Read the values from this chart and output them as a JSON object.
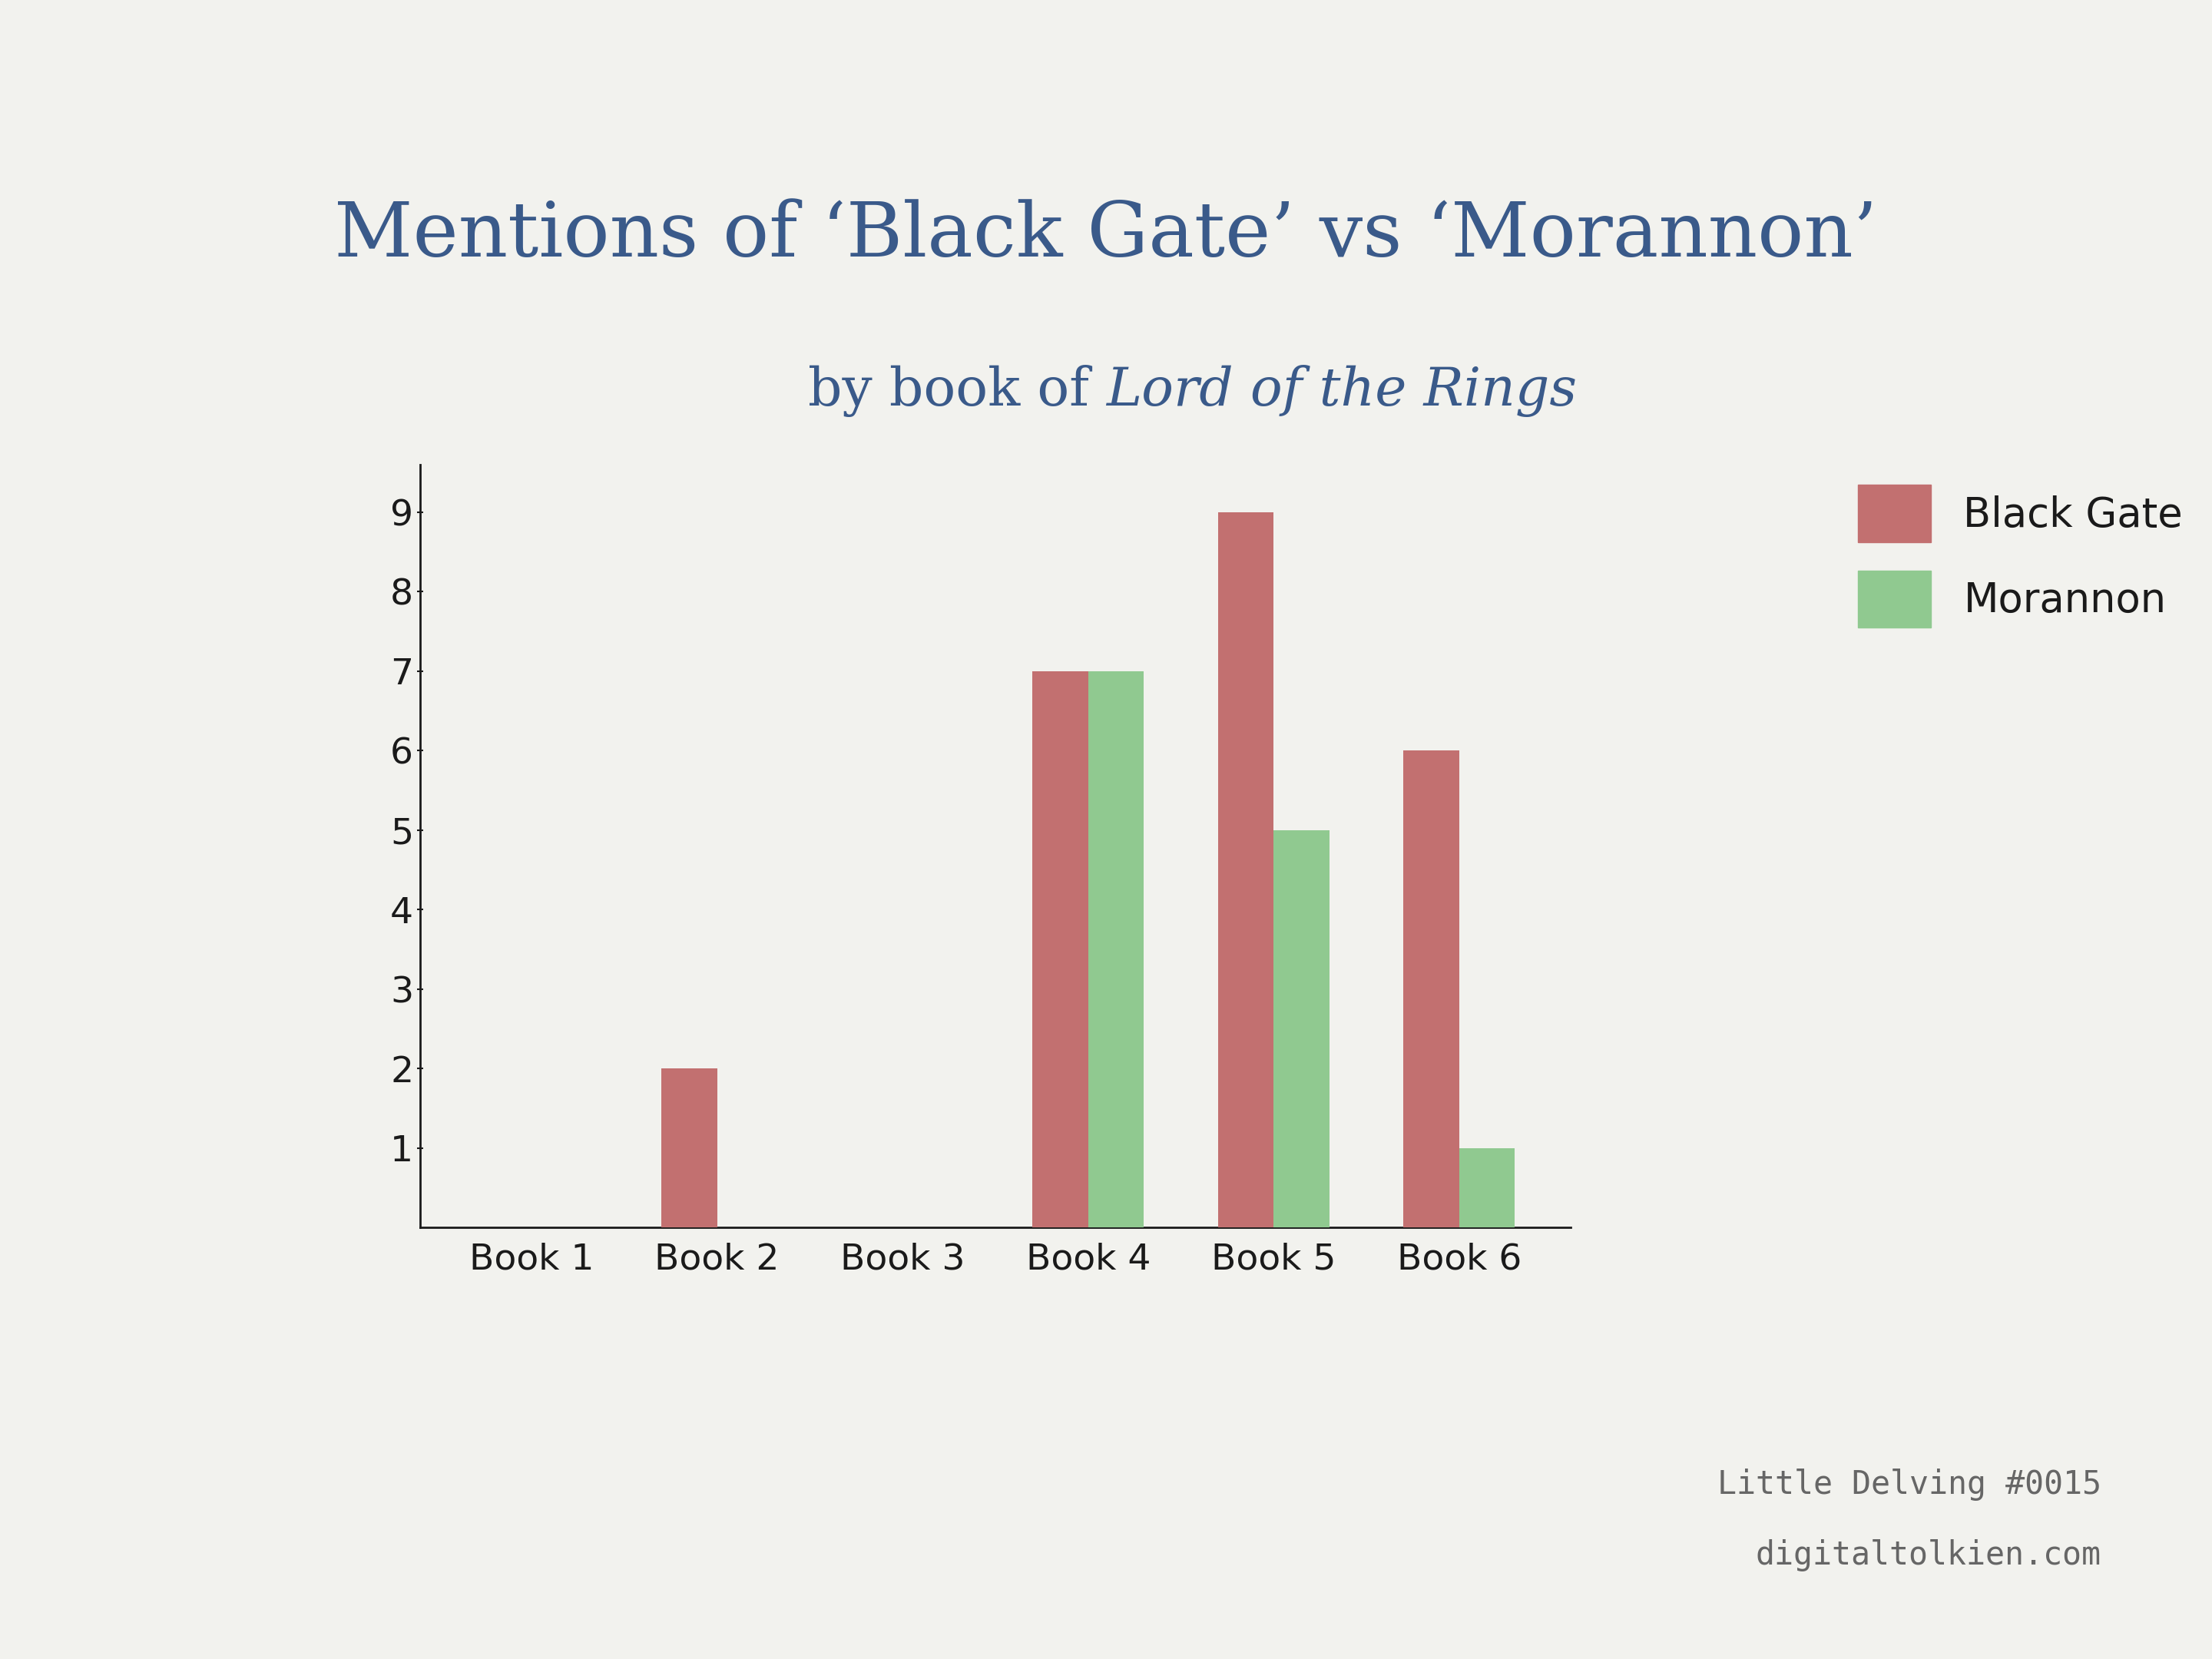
{
  "title_line1": "Mentions of ‘Black Gate’ vs ‘Morannon’",
  "subtitle_normal": "by book of ",
  "subtitle_italic": "Lord of the Rings",
  "books": [
    "Book 1",
    "Book 2",
    "Book 3",
    "Book 4",
    "Book 5",
    "Book 6"
  ],
  "black_gate": [
    0,
    2,
    0,
    7,
    9,
    6
  ],
  "morannon": [
    0,
    0,
    0,
    7,
    5,
    1
  ],
  "bar_color_black_gate": "#c27070",
  "bar_color_morannon": "#90c990",
  "title_color": "#3a5a8a",
  "subtitle_color": "#3a5a8a",
  "background_color": "#f2f2ee",
  "axis_line_color": "#1a1a1a",
  "tick_label_color": "#1a1a1a",
  "legend_label_black_gate": "Black Gate",
  "legend_label_morannon": "Morannon",
  "footer_text1": "Little Delving #0015",
  "footer_text2": "digitaltolkien.com",
  "footer_color": "#666666",
  "ylim": [
    0,
    9.6
  ],
  "yticks": [
    1,
    2,
    3,
    4,
    5,
    6,
    7,
    8,
    9
  ],
  "bar_width": 0.3,
  "title_fontsize": 72,
  "subtitle_fontsize": 50,
  "tick_fontsize": 34,
  "legend_fontsize": 38,
  "footer_fontsize": 30
}
